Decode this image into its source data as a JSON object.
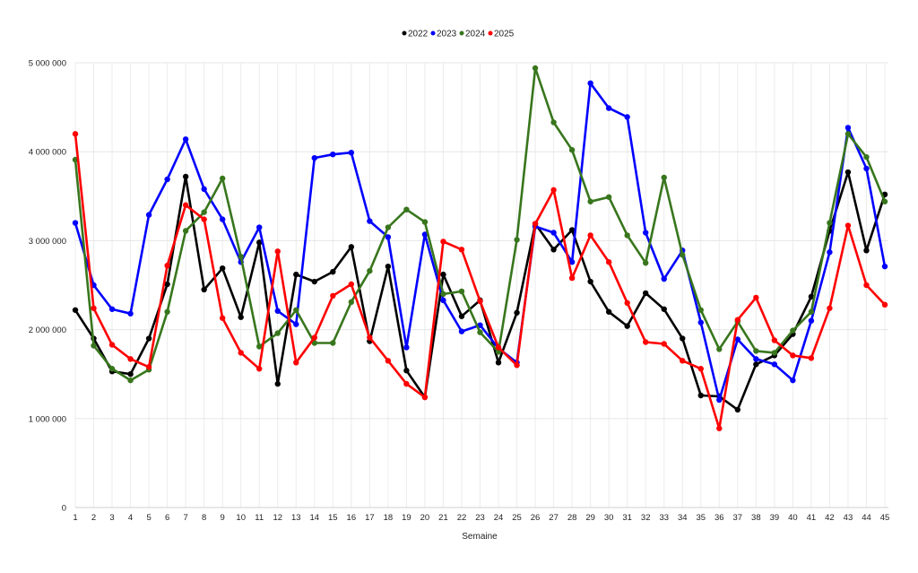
{
  "chart_data": {
    "type": "line",
    "title": "",
    "xlabel": "Semaine",
    "ylabel": "",
    "ylim": [
      0,
      5000000
    ],
    "yticks": [
      0,
      1000000,
      2000000,
      3000000,
      4000000,
      5000000
    ],
    "ytick_labels": [
      "0",
      "1 000 000",
      "2 000 000",
      "3 000 000",
      "4 000 000",
      "5 000 000"
    ],
    "x": [
      1,
      2,
      3,
      4,
      5,
      6,
      7,
      8,
      9,
      10,
      11,
      12,
      13,
      14,
      15,
      16,
      17,
      18,
      19,
      20,
      21,
      22,
      23,
      24,
      25,
      26,
      27,
      28,
      29,
      30,
      31,
      32,
      33,
      34,
      35,
      36,
      37,
      38,
      39,
      40,
      41,
      42,
      43,
      44,
      45
    ],
    "grid": true,
    "legend_position": "top-center",
    "series": [
      {
        "name": "2022",
        "color": "#000000",
        "values": [
          2220000,
          1900000,
          1530000,
          1500000,
          1900000,
          2510000,
          3720000,
          2450000,
          2690000,
          2140000,
          2980000,
          1390000,
          2620000,
          2540000,
          2650000,
          2930000,
          1870000,
          2710000,
          1540000,
          1240000,
          2620000,
          2150000,
          2330000,
          1630000,
          2190000,
          3190000,
          2900000,
          3120000,
          2540000,
          2200000,
          2040000,
          2410000,
          2230000,
          1900000,
          1260000,
          1250000,
          1100000,
          1610000,
          1710000,
          1950000,
          2370000,
          3110000,
          3770000,
          2890000,
          3520000
        ]
      },
      {
        "name": "2023",
        "color": "#0000ff",
        "values": [
          3200000,
          2500000,
          2230000,
          2180000,
          3290000,
          3690000,
          4140000,
          3580000,
          3240000,
          2760000,
          3150000,
          2210000,
          2060000,
          3930000,
          3970000,
          3990000,
          3220000,
          3040000,
          1800000,
          3070000,
          2330000,
          1980000,
          2050000,
          1790000,
          1630000,
          3160000,
          3090000,
          2760000,
          4770000,
          4490000,
          4390000,
          3090000,
          2570000,
          2890000,
          2080000,
          1210000,
          1890000,
          1670000,
          1610000,
          1430000,
          2100000,
          2870000,
          4270000,
          3810000,
          2710000
        ]
      },
      {
        "name": "2024",
        "color": "#38761d",
        "values": [
          3910000,
          1820000,
          1560000,
          1430000,
          1550000,
          2200000,
          3110000,
          3320000,
          3700000,
          2820000,
          1810000,
          1960000,
          2220000,
          1850000,
          1850000,
          2310000,
          2660000,
          3150000,
          3350000,
          3210000,
          2400000,
          2430000,
          1970000,
          1750000,
          3010000,
          4940000,
          4330000,
          4020000,
          3440000,
          3490000,
          3060000,
          2750000,
          3710000,
          2840000,
          2220000,
          1780000,
          2090000,
          1760000,
          1740000,
          1990000,
          2200000,
          3200000,
          4200000,
          3940000,
          3440000
        ]
      },
      {
        "name": "2025",
        "color": "#ff0000",
        "values": [
          4200000,
          2240000,
          1830000,
          1670000,
          1580000,
          2720000,
          3400000,
          3240000,
          2130000,
          1740000,
          1560000,
          2880000,
          1630000,
          1910000,
          2380000,
          2510000,
          1910000,
          1650000,
          1390000,
          1240000,
          2990000,
          2900000,
          2320000,
          1800000,
          1600000,
          3190000,
          3570000,
          2580000,
          3060000,
          2760000,
          2300000,
          1860000,
          1840000,
          1650000,
          1560000,
          890000,
          2110000,
          2360000,
          1880000,
          1710000,
          1680000,
          2240000,
          3170000,
          2500000,
          2280000
        ]
      }
    ]
  }
}
